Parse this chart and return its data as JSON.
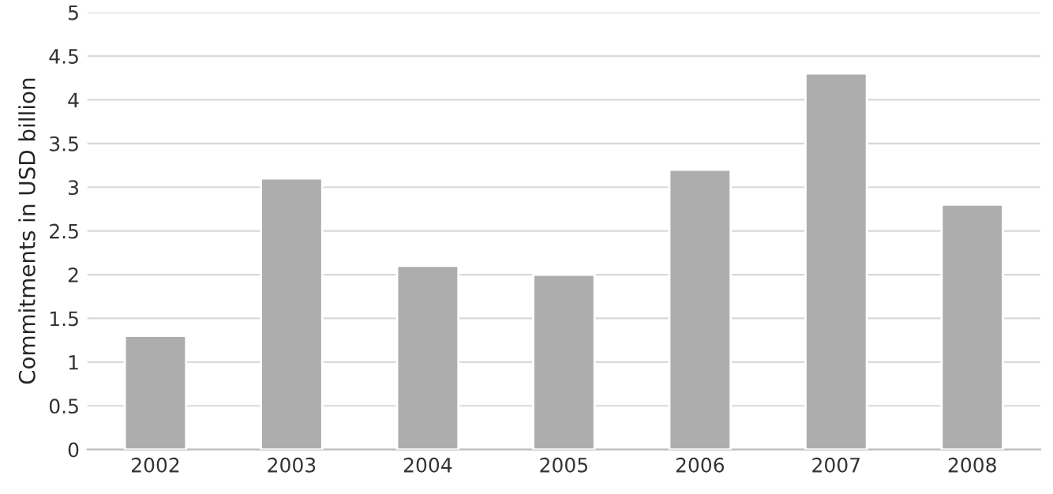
{
  "chart_data": {
    "type": "bar",
    "ylabel": "Commitments in USD billion",
    "categories": [
      "2002",
      "2003",
      "2004",
      "2005",
      "2006",
      "2007",
      "2008"
    ],
    "values": [
      1.3,
      3.1,
      2.1,
      2.0,
      3.2,
      4.3,
      2.8
    ],
    "color": "#adadad",
    "ylim": [
      0,
      5
    ],
    "yticks": [
      0,
      {
        "value": 0.5,
        "label": "0.5"
      },
      1,
      {
        "value": 1.5,
        "label": "1.5"
      },
      2,
      {
        "value": 2.5,
        "label": "2.5"
      },
      3,
      {
        "value": 3.5,
        "label": "3.5"
      },
      4,
      {
        "value": 4.5,
        "label": "4.5"
      },
      5
    ],
    "grid": "y",
    "legend": false
  }
}
